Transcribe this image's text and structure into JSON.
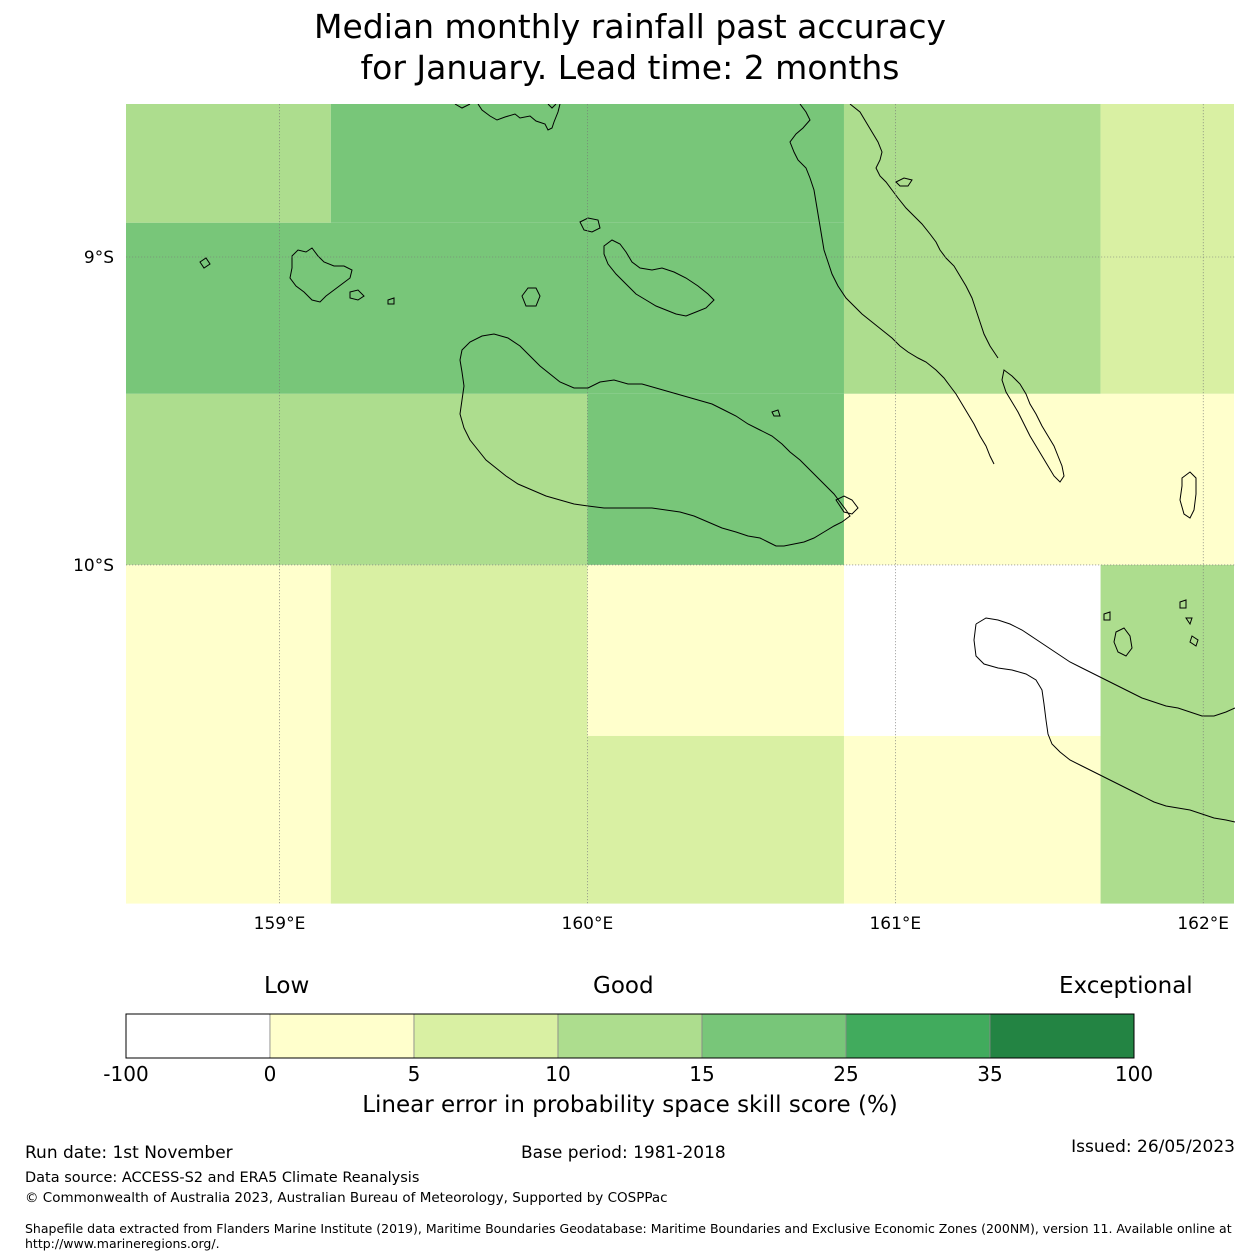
{
  "title": {
    "line1": "Median monthly rainfall past accuracy",
    "line2": "for January. Lead time: 2 months"
  },
  "map": {
    "lon_range": [
      158.5,
      162.1
    ],
    "lat_range": [
      -11.1,
      -8.5
    ],
    "lon_ticks": [
      {
        "value": 159,
        "label": "159°E"
      },
      {
        "value": 160,
        "label": "160°E"
      },
      {
        "value": 161,
        "label": "161°E"
      },
      {
        "value": 162,
        "label": "162°E"
      }
    ],
    "lat_ticks": [
      {
        "value": -9,
        "label": "9°S"
      },
      {
        "value": -10,
        "label": "10°S"
      }
    ],
    "cells": [
      {
        "lon": [
          158.5,
          159.1667
        ],
        "lat": [
          -8.8889,
          -8.5
        ],
        "bin": 3
      },
      {
        "lon": [
          159.1667,
          160.8333
        ],
        "lat": [
          -8.8889,
          -8.5
        ],
        "bin": 4
      },
      {
        "lon": [
          160.8333,
          161.6667
        ],
        "lat": [
          -9.4444,
          -8.5
        ],
        "bin": 3
      },
      {
        "lon": [
          161.6667,
          162.1
        ],
        "lat": [
          -9.4444,
          -8.5
        ],
        "bin": 2
      },
      {
        "lon": [
          158.5,
          160.8333
        ],
        "lat": [
          -9.4444,
          -8.8889
        ],
        "bin": 4
      },
      {
        "lon": [
          158.5,
          160.0
        ],
        "lat": [
          -10.0,
          -9.4444
        ],
        "bin": 3
      },
      {
        "lon": [
          160.0,
          160.8333
        ],
        "lat": [
          -10.0,
          -9.4444
        ],
        "bin": 4
      },
      {
        "lon": [
          160.8333,
          162.1
        ],
        "lat": [
          -10.0,
          -9.4444
        ],
        "bin": 1
      },
      {
        "lon": [
          158.5,
          159.1667
        ],
        "lat": [
          -11.1,
          -10.0
        ],
        "bin": 1
      },
      {
        "lon": [
          159.1667,
          160.0
        ],
        "lat": [
          -11.1,
          -10.0
        ],
        "bin": 2
      },
      {
        "lon": [
          160.0,
          160.8333
        ],
        "lat": [
          -10.5556,
          -10.0
        ],
        "bin": 1
      },
      {
        "lon": [
          160.0,
          160.8333
        ],
        "lat": [
          -11.1,
          -10.5556
        ],
        "bin": 2
      },
      {
        "lon": [
          160.8333,
          161.6667
        ],
        "lat": [
          -10.5556,
          -10.0
        ],
        "bin": 0
      },
      {
        "lon": [
          160.8333,
          161.6667
        ],
        "lat": [
          -11.1,
          -10.5556
        ],
        "bin": 1
      },
      {
        "lon": [
          161.6667,
          162.1
        ],
        "lat": [
          -11.1,
          -10.0
        ],
        "bin": 3
      }
    ]
  },
  "colorbar": {
    "category_labels": {
      "low": "Low",
      "good": "Good",
      "exceptional": "Exceptional"
    },
    "bins": [
      {
        "from": -100,
        "to": 0,
        "color": "#ffffff"
      },
      {
        "from": 0,
        "to": 5,
        "color": "#ffffcc"
      },
      {
        "from": 5,
        "to": 10,
        "color": "#d9f0a3"
      },
      {
        "from": 10,
        "to": 15,
        "color": "#addd8e"
      },
      {
        "from": 15,
        "to": 25,
        "color": "#78c679"
      },
      {
        "from": 25,
        "to": 35,
        "color": "#41ab5d"
      },
      {
        "from": 35,
        "to": 100,
        "color": "#238443"
      }
    ],
    "tick_labels": [
      "-100",
      "0",
      "5",
      "10",
      "15",
      "25",
      "35",
      "100"
    ],
    "axis_label": "Linear error in probability space skill score (%)"
  },
  "footer": {
    "run_date": "Run date: 1st November",
    "base_period": "Base period: 1981-2018",
    "issued": "Issued: 26/05/2023",
    "data_source": "Data source: ACCESS-S2 and ERA5 Climate Reanalysis",
    "copyright": "© Commonwealth of Australia 2023, Australian Bureau of Meteorology, Supported by COSPPac",
    "shapefile_line1": "Shapefile data extracted from Flanders Marine Institute (2019), Maritime Boundaries Geodatabase: Maritime Boundaries and Exclusive Economic Zones (200NM), version 11. Available online at",
    "shapefile_line2": "http://www.marineregions.org/."
  }
}
